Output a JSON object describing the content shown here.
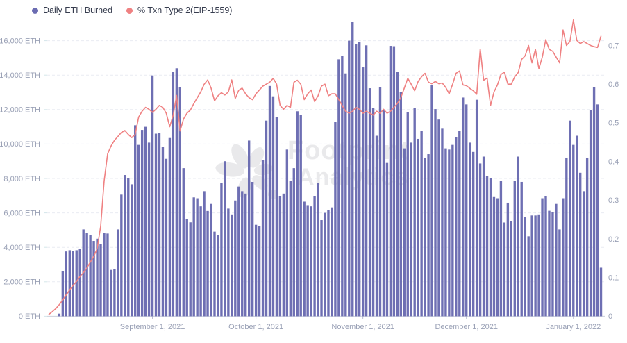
{
  "legend": {
    "items": [
      {
        "label": "Daily ETH Burned",
        "color": "#6b6cb2"
      },
      {
        "label": "% Txn Type 2(EIP-1559)",
        "color": "#ef8182"
      }
    ]
  },
  "watermark": {
    "line1": "Footprint",
    "line2": "Analytics",
    "color": "#e9e9eb",
    "icon": "flower-logo-icon"
  },
  "axes": {
    "left_ticks": [
      "0 ETH",
      "2,000 ETH",
      "4,000 ETH",
      "6,000 ETH",
      "8,000 ETH",
      "10,000 ETH",
      "12,000 ETH",
      "14,000 ETH",
      "16,000 ETH"
    ],
    "right_ticks": [
      "0",
      "0.1",
      "0.2",
      "0.3",
      "0.4",
      "0.5",
      "0.6",
      "0.7"
    ],
    "x_tick_labels": [
      "September 1, 2021",
      "October 1, 2021",
      "November 1, 2021",
      "December 1, 2021",
      "January 1, 2022"
    ],
    "x_tick_indexes": [
      30,
      60,
      91,
      121,
      152
    ]
  },
  "chart_data": {
    "type": "combo_bar_line",
    "x_start_date": "2021-08-02",
    "x_end_date": "2022-01-09",
    "x_unit": "day",
    "left_axis": {
      "min": 0,
      "max": 16000,
      "step": 2000,
      "unit": "ETH"
    },
    "right_axis": {
      "min": 0,
      "max": 0.7,
      "step": 0.1
    },
    "grid": "horizontal-dashed",
    "legend_position": "top-left",
    "series": [
      {
        "name": "Daily ETH Burned",
        "type": "bar",
        "axis": "left",
        "color": "#6e6fb3",
        "values": [
          0,
          0,
          0,
          150,
          2620,
          3760,
          3830,
          3800,
          3830,
          3900,
          5040,
          4840,
          4700,
          4370,
          4500,
          4170,
          4840,
          4800,
          2690,
          2750,
          5040,
          7060,
          8200,
          8000,
          7660,
          11090,
          9950,
          10820,
          11000,
          10080,
          13980,
          10600,
          10660,
          9850,
          9140,
          10350,
          14200,
          14400,
          13300,
          8600,
          5650,
          5450,
          6900,
          6850,
          6380,
          7260,
          6110,
          6520,
          4910,
          4700,
          7730,
          9000,
          6250,
          5910,
          6720,
          7530,
          7260,
          7120,
          10200,
          7800,
          5310,
          5240,
          9070,
          11360,
          13370,
          12770,
          11560,
          6990,
          7120,
          9680,
          7860,
          8600,
          11900,
          11690,
          6650,
          6450,
          6380,
          6990,
          7730,
          5580,
          6000,
          6150,
          6320,
          11290,
          14920,
          15120,
          14100,
          16000,
          17100,
          15790,
          15930,
          14450,
          15730,
          13240,
          12100,
          10480,
          13310,
          12000,
          8900,
          15700,
          15680,
          14180,
          13040,
          9750,
          11830,
          10080,
          12100,
          10300,
          10750,
          9210,
          9410,
          13440,
          12030,
          11420,
          10890,
          9750,
          9680,
          9950,
          10400,
          10750,
          12700,
          12300,
          10080,
          9540,
          12570,
          8870,
          9270,
          8130,
          8000,
          6920,
          6850,
          7860,
          5440,
          6590,
          5510,
          7860,
          9270,
          7800,
          5780,
          4640,
          5850,
          5850,
          5910,
          6850,
          6990,
          6120,
          6050,
          6520,
          5040,
          6850,
          9210,
          11360,
          9950,
          10480,
          8330,
          7260,
          9210,
          11960,
          13310,
          12300,
          2820
        ]
      },
      {
        "name": "% Txn Type 2(EIP-1559)",
        "type": "line",
        "axis": "right",
        "color": "#ef8182",
        "values": [
          0.005,
          0.012,
          0.02,
          0.03,
          0.042,
          0.055,
          0.068,
          0.08,
          0.09,
          0.103,
          0.113,
          0.125,
          0.14,
          0.155,
          0.175,
          0.233,
          0.35,
          0.42,
          0.44,
          0.455,
          0.465,
          0.475,
          0.48,
          0.47,
          0.462,
          0.47,
          0.515,
          0.53,
          0.54,
          0.535,
          0.527,
          0.535,
          0.545,
          0.54,
          0.525,
          0.49,
          0.52,
          0.571,
          0.479,
          0.51,
          0.525,
          0.533,
          0.55,
          0.565,
          0.58,
          0.6,
          0.611,
          0.59,
          0.557,
          0.57,
          0.578,
          0.572,
          0.58,
          0.611,
          0.563,
          0.584,
          0.59,
          0.575,
          0.565,
          0.56,
          0.575,
          0.585,
          0.595,
          0.6,
          0.605,
          0.615,
          0.6,
          0.545,
          0.535,
          0.545,
          0.54,
          0.605,
          0.61,
          0.6,
          0.56,
          0.575,
          0.585,
          0.555,
          0.57,
          0.595,
          0.6,
          0.57,
          0.575,
          0.575,
          0.56,
          0.545,
          0.53,
          0.525,
          0.53,
          0.54,
          0.535,
          0.525,
          0.53,
          0.525,
          0.52,
          0.53,
          0.525,
          0.535,
          0.525,
          0.53,
          0.54,
          0.55,
          0.565,
          0.59,
          0.615,
          0.6,
          0.583,
          0.607,
          0.619,
          0.628,
          0.605,
          0.601,
          0.607,
          0.601,
          0.603,
          0.592,
          0.575,
          0.6,
          0.628,
          0.634,
          0.598,
          0.596,
          0.589,
          0.583,
          0.574,
          0.691,
          0.61,
          0.616,
          0.545,
          0.58,
          0.598,
          0.625,
          0.631,
          0.6,
          0.6,
          0.619,
          0.63,
          0.664,
          0.673,
          0.7,
          0.655,
          0.69,
          0.64,
          0.67,
          0.715,
          0.69,
          0.685,
          0.67,
          0.655,
          0.74,
          0.7,
          0.71,
          0.766,
          0.713,
          0.705,
          0.71,
          0.705,
          0.7,
          0.697,
          0.695,
          0.724
        ]
      }
    ]
  }
}
